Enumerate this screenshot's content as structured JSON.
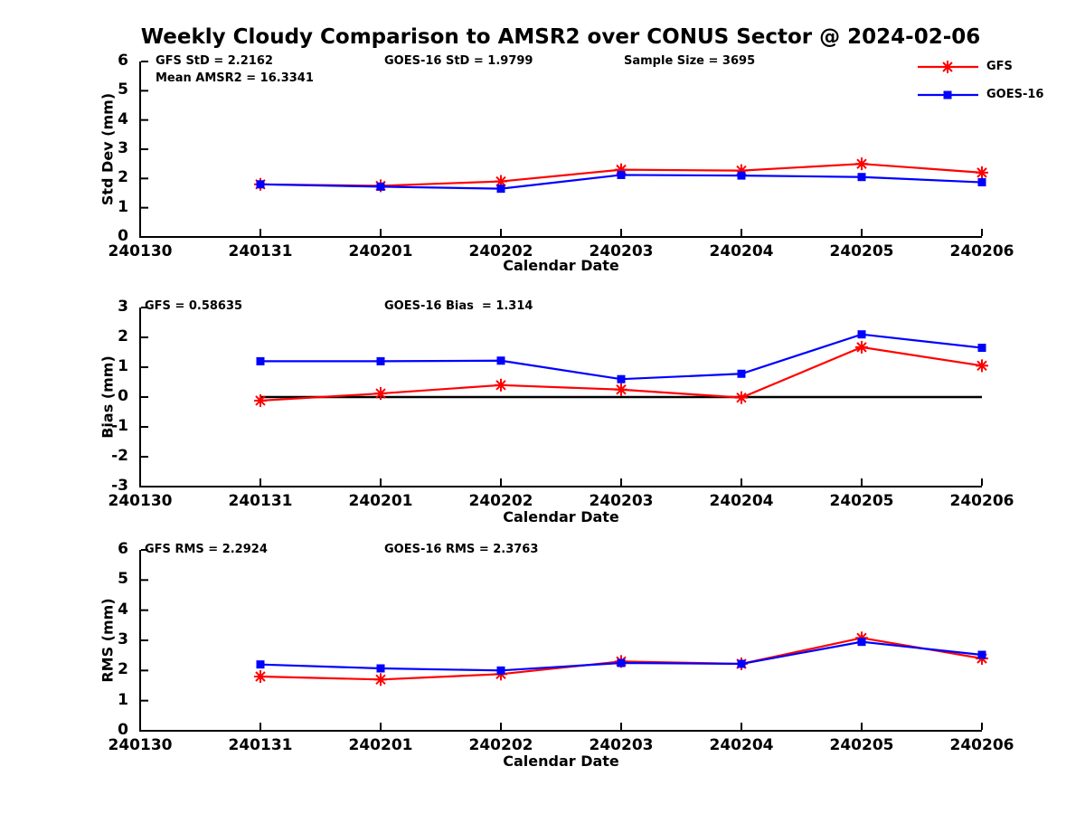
{
  "title": "Weekly Cloudy Comparison to AMSR2 over CONUS Sector @ 2024-02-06",
  "colors": {
    "gfs": "#ff0000",
    "goes16": "#0000ff",
    "axis": "#000000",
    "background": "#ffffff"
  },
  "legend": {
    "entries": [
      {
        "label": "GFS",
        "color": "#ff0000",
        "marker": "asterisk"
      },
      {
        "label": "GOES-16",
        "color": "#0000ff",
        "marker": "square"
      }
    ]
  },
  "categories": [
    "240130",
    "240131",
    "240201",
    "240202",
    "240203",
    "240204",
    "240205",
    "240206"
  ],
  "chart_data": [
    {
      "type": "line",
      "ylabel": "Std Dev (mm)",
      "xlabel": "Calendar Date",
      "ylim": [
        0,
        6
      ],
      "yticks": [
        0,
        1,
        2,
        3,
        4,
        5,
        6
      ],
      "grid": false,
      "legend_position": "upper-right-outside",
      "categories": [
        "240130",
        "240131",
        "240201",
        "240202",
        "240203",
        "240204",
        "240205",
        "240206"
      ],
      "data_dates": [
        "240131",
        "240201",
        "240202",
        "240203",
        "240204",
        "240205",
        "240206"
      ],
      "zero_line": false,
      "series": [
        {
          "name": "GFS",
          "color": "#ff0000",
          "marker": "asterisk",
          "values": [
            1.8,
            1.75,
            1.9,
            2.3,
            2.27,
            2.5,
            2.2
          ]
        },
        {
          "name": "GOES-16",
          "color": "#0000ff",
          "marker": "square",
          "values": [
            1.8,
            1.72,
            1.65,
            2.12,
            2.1,
            2.05,
            1.87
          ]
        }
      ],
      "annotations": [
        {
          "text": "GFS StD = 2.2162"
        },
        {
          "text": "Mean AMSR2 = 16.3341"
        },
        {
          "text": "GOES-16 StD = 1.9799"
        },
        {
          "text": "Sample Size = 3695"
        }
      ]
    },
    {
      "type": "line",
      "ylabel": "Bias (mm)",
      "xlabel": "Calendar Date",
      "ylim": [
        -3,
        3
      ],
      "yticks": [
        -3,
        -2,
        -1,
        0,
        1,
        2,
        3
      ],
      "grid": false,
      "categories": [
        "240130",
        "240131",
        "240201",
        "240202",
        "240203",
        "240204",
        "240205",
        "240206"
      ],
      "data_dates": [
        "240131",
        "240201",
        "240202",
        "240203",
        "240204",
        "240205",
        "240206"
      ],
      "zero_line": true,
      "series": [
        {
          "name": "GFS",
          "color": "#ff0000",
          "marker": "asterisk",
          "values": [
            -0.12,
            0.12,
            0.4,
            0.25,
            -0.02,
            1.67,
            1.05
          ]
        },
        {
          "name": "GOES-16",
          "color": "#0000ff",
          "marker": "square",
          "values": [
            1.2,
            1.2,
            1.22,
            0.6,
            0.78,
            2.1,
            1.65
          ]
        }
      ],
      "annotations": [
        {
          "text": "GFS = 0.58635"
        },
        {
          "text": "GOES-16 Bias  = 1.314"
        }
      ]
    },
    {
      "type": "line",
      "ylabel": "RMS (mm)",
      "xlabel": "Calendar Date",
      "ylim": [
        0,
        6
      ],
      "yticks": [
        0,
        1,
        2,
        3,
        4,
        5,
        6
      ],
      "grid": false,
      "categories": [
        "240130",
        "240131",
        "240201",
        "240202",
        "240203",
        "240204",
        "240205",
        "240206"
      ],
      "data_dates": [
        "240131",
        "240201",
        "240202",
        "240203",
        "240204",
        "240205",
        "240206"
      ],
      "zero_line": false,
      "series": [
        {
          "name": "GFS",
          "color": "#ff0000",
          "marker": "asterisk",
          "values": [
            1.8,
            1.7,
            1.88,
            2.3,
            2.22,
            3.08,
            2.4
          ]
        },
        {
          "name": "GOES-16",
          "color": "#0000ff",
          "marker": "square",
          "values": [
            2.2,
            2.07,
            2.0,
            2.25,
            2.22,
            2.95,
            2.52
          ]
        }
      ],
      "annotations": [
        {
          "text": "GFS RMS = 2.2924"
        },
        {
          "text": "GOES-16 RMS = 2.3763"
        }
      ]
    }
  ]
}
